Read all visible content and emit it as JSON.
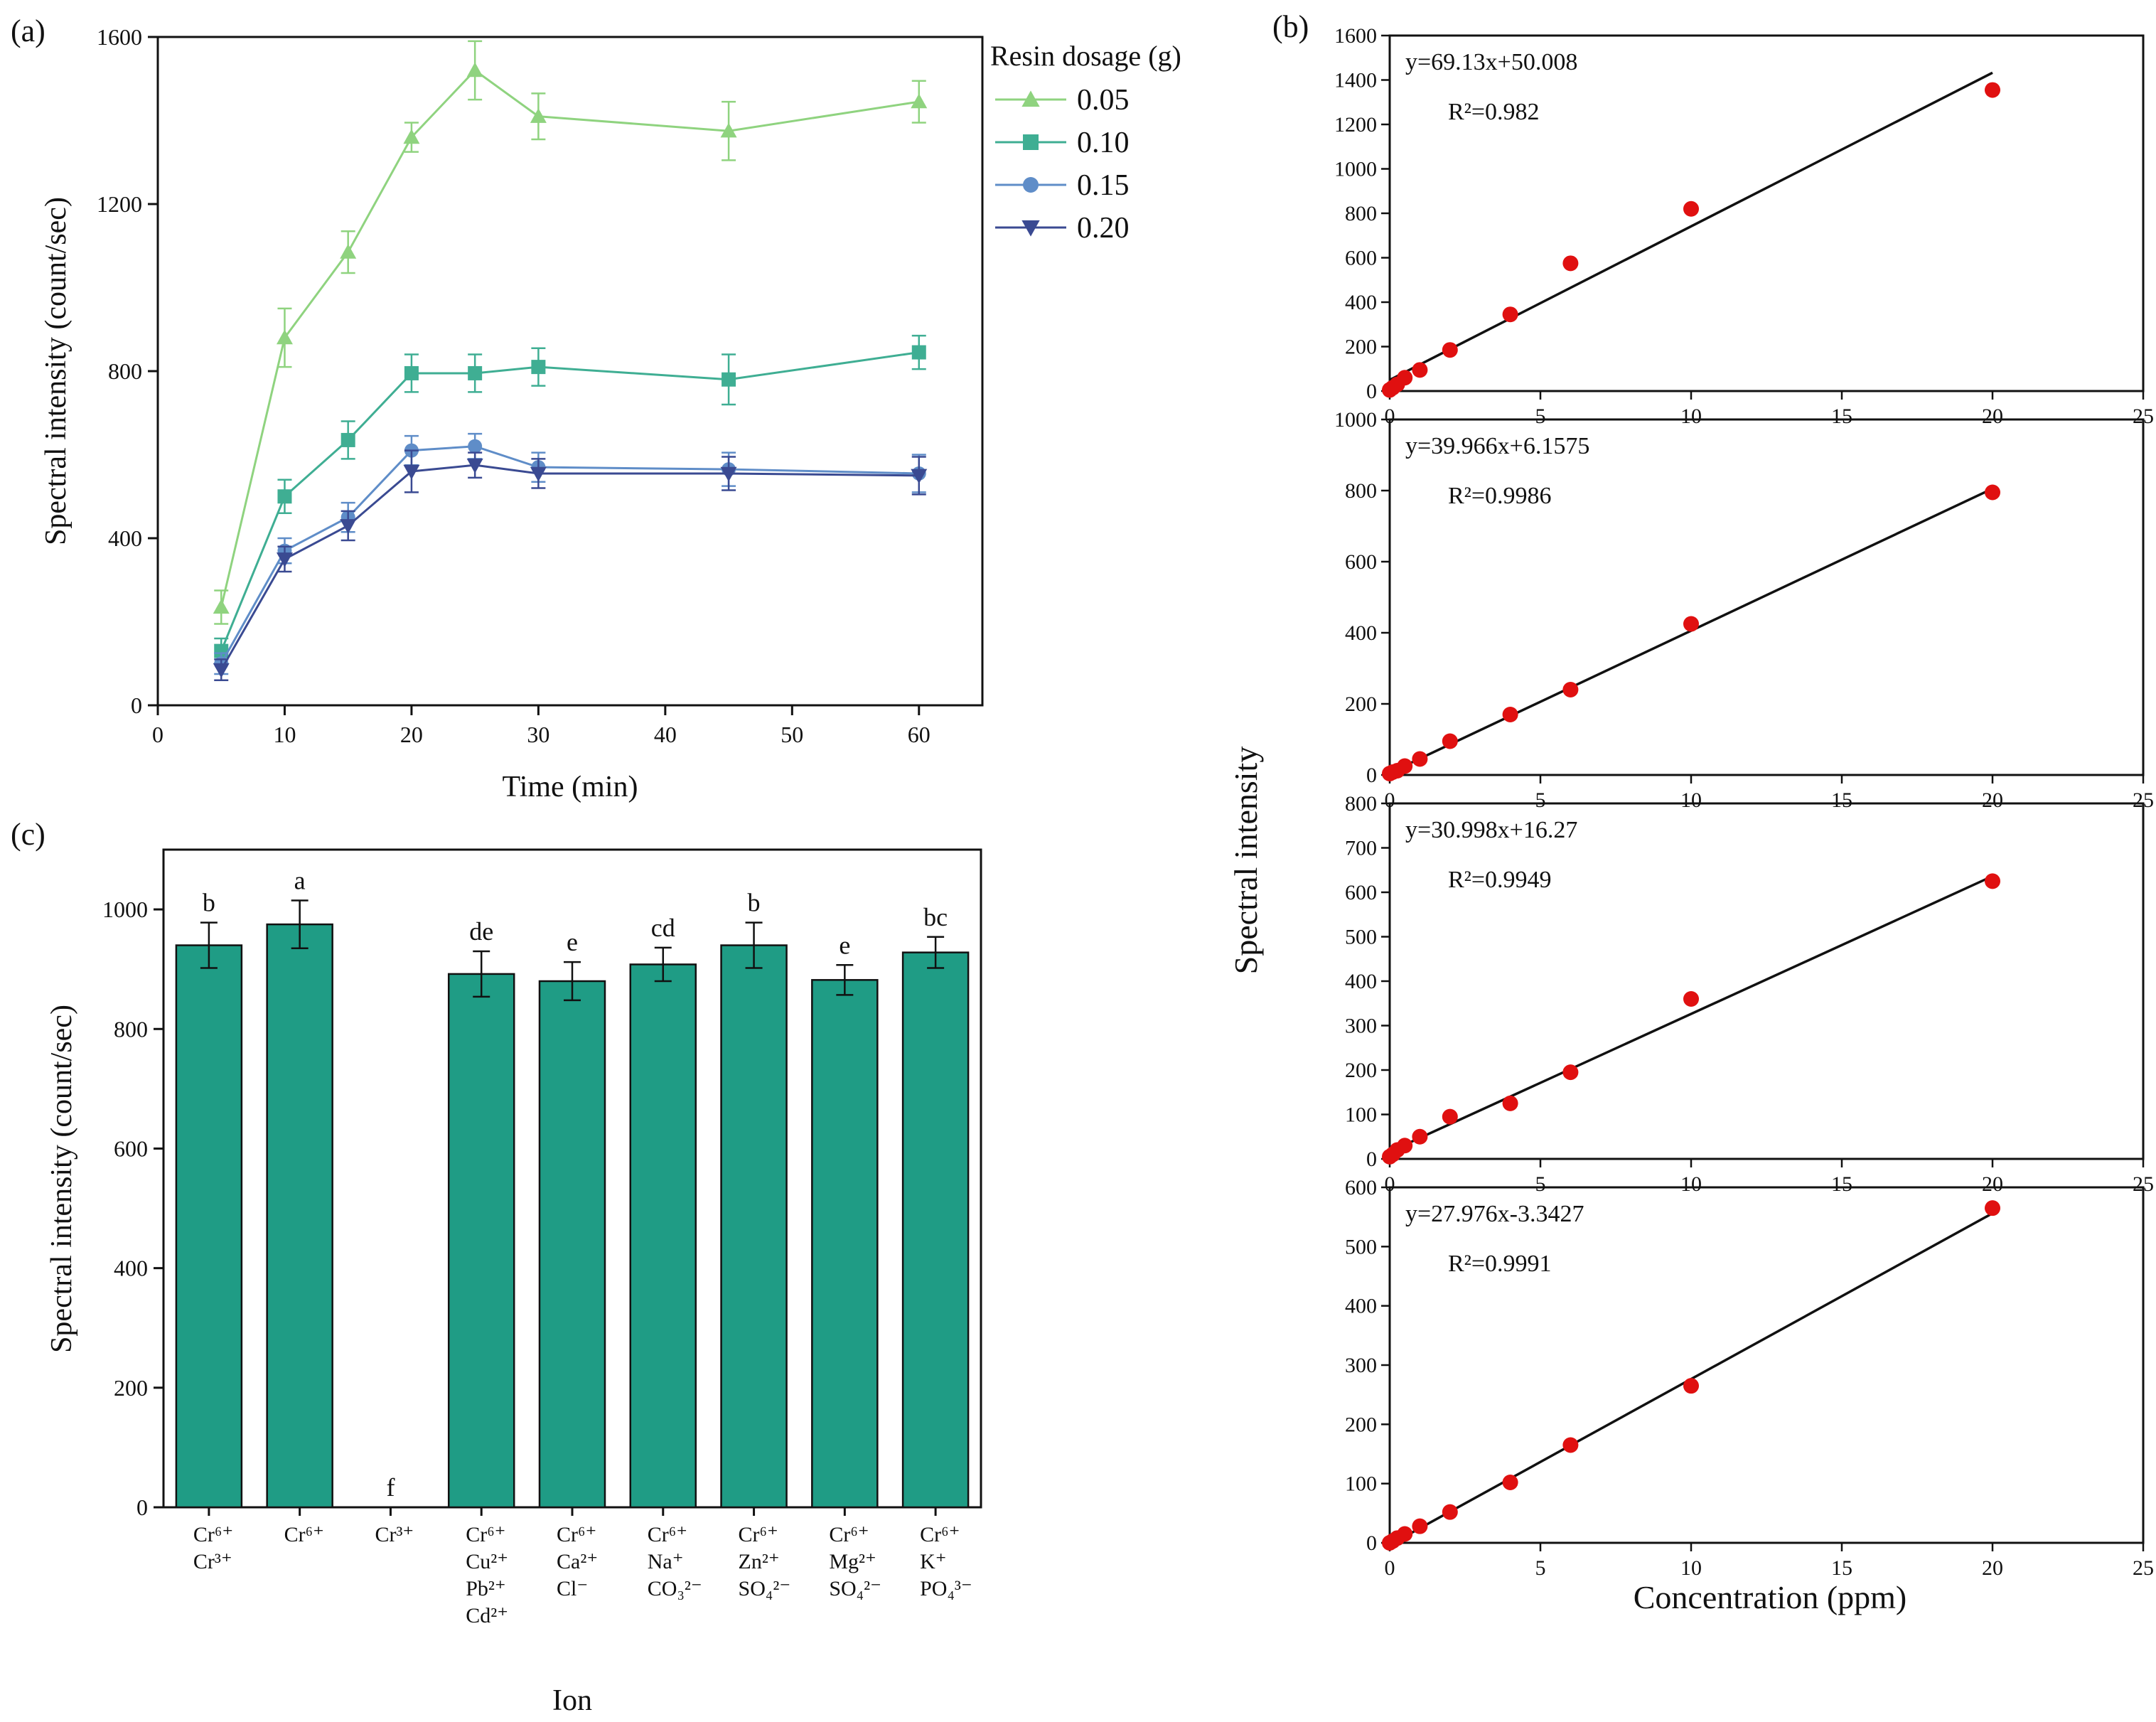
{
  "chart_data": [
    {
      "panel": "(a)",
      "type": "line",
      "xlabel": "Time (min)",
      "ylabel": "Spectral intensity (count/sec)",
      "xlim": [
        0,
        65
      ],
      "ylim": [
        0,
        1600
      ],
      "xticks": [
        0,
        10,
        20,
        30,
        40,
        50,
        60
      ],
      "yticks": [
        0,
        400,
        800,
        1200,
        1600
      ],
      "x": [
        5,
        10,
        15,
        20,
        25,
        30,
        45,
        60
      ],
      "legend": {
        "title": "Resin dosage (g)",
        "position": "top-right"
      },
      "series": [
        {
          "name": "0.05",
          "color": "#8fd37f",
          "marker": "triangle-up",
          "values": [
            235,
            880,
            1085,
            1360,
            1520,
            1410,
            1375,
            1445
          ],
          "errors": [
            40,
            70,
            50,
            35,
            70,
            55,
            70,
            50
          ]
        },
        {
          "name": "0.10",
          "color": "#3fae93",
          "marker": "square",
          "values": [
            130,
            500,
            635,
            795,
            795,
            810,
            780,
            845
          ],
          "errors": [
            30,
            40,
            45,
            45,
            45,
            45,
            60,
            40
          ]
        },
        {
          "name": "0.15",
          "color": "#5f8dc8",
          "marker": "circle",
          "values": [
            100,
            370,
            450,
            610,
            620,
            570,
            565,
            555
          ],
          "errors": [
            25,
            30,
            35,
            35,
            30,
            35,
            40,
            45
          ]
        },
        {
          "name": "0.20",
          "color": "#3a4a92",
          "marker": "triangle-down",
          "values": [
            85,
            350,
            430,
            560,
            575,
            555,
            555,
            550
          ],
          "errors": [
            25,
            30,
            35,
            50,
            30,
            35,
            40,
            45
          ]
        }
      ]
    },
    {
      "panel": "(b)",
      "type": "scatter",
      "xlabel": "Concentration (ppm)",
      "ylabel": "Spectral intensity",
      "xlim": [
        0,
        25
      ],
      "xticks": [
        0,
        5,
        10,
        15,
        20,
        25
      ],
      "point_color": "#e01010",
      "line_color": "#111111",
      "subplots": [
        {
          "equation": "y=69.13x+50.008",
          "r2": "R²=0.982",
          "ylim": [
            0,
            1600
          ],
          "yticks": [
            0,
            200,
            400,
            600,
            800,
            1000,
            1200,
            1400,
            1600
          ],
          "slope": 69.13,
          "intercept": 50.008,
          "x": [
            0,
            0.1,
            0.25,
            0.5,
            1,
            2,
            4,
            6,
            10,
            20
          ],
          "y": [
            5,
            15,
            30,
            60,
            95,
            185,
            345,
            575,
            820,
            1355
          ]
        },
        {
          "equation": "y=39.966x+6.1575",
          "r2": "R²=0.9986",
          "ylim": [
            0,
            1000
          ],
          "yticks": [
            0,
            200,
            400,
            600,
            800,
            1000
          ],
          "slope": 39.966,
          "intercept": 6.1575,
          "x": [
            0,
            0.1,
            0.25,
            0.5,
            1,
            2,
            4,
            6,
            10,
            20
          ],
          "y": [
            4,
            8,
            12,
            25,
            45,
            95,
            170,
            240,
            425,
            795
          ]
        },
        {
          "equation": "y=30.998x+16.27",
          "r2": "R²=0.9949",
          "ylim": [
            0,
            800
          ],
          "yticks": [
            0,
            100,
            200,
            300,
            400,
            500,
            600,
            700,
            800
          ],
          "slope": 30.998,
          "intercept": 16.27,
          "x": [
            0,
            0.1,
            0.25,
            0.5,
            1,
            2,
            4,
            6,
            10,
            20
          ],
          "y": [
            5,
            10,
            20,
            30,
            50,
            95,
            125,
            195,
            360,
            625
          ]
        },
        {
          "equation": "y=27.976x-3.3427",
          "r2": "R²=0.9991",
          "ylim": [
            0,
            600
          ],
          "yticks": [
            0,
            100,
            200,
            300,
            400,
            500,
            600
          ],
          "slope": 27.976,
          "intercept": -3.3427,
          "x": [
            0,
            0.1,
            0.25,
            0.5,
            1,
            2,
            4,
            6,
            10,
            20
          ],
          "y": [
            0,
            3,
            8,
            15,
            28,
            52,
            102,
            165,
            265,
            565
          ]
        }
      ]
    },
    {
      "panel": "(c)",
      "type": "bar",
      "xlabel": "Ion",
      "ylabel": "Spectral intensity (count/sec)",
      "ylim": [
        0,
        1100
      ],
      "yticks": [
        0,
        200,
        400,
        600,
        800,
        1000
      ],
      "bar_color": "#1f9c85",
      "categories": [
        [
          "Cr⁶⁺",
          "Cr³⁺"
        ],
        [
          "Cr⁶⁺"
        ],
        [
          "Cr³⁺"
        ],
        [
          "Cr⁶⁺",
          "Cu²⁺",
          "Pb²⁺",
          "Cd²⁺"
        ],
        [
          "Cr⁶⁺",
          "Ca²⁺",
          "Cl⁻"
        ],
        [
          "Cr⁶⁺",
          "Na⁺",
          "CO₃²⁻"
        ],
        [
          "Cr⁶⁺",
          "Zn²⁺",
          "SO₄²⁻"
        ],
        [
          "Cr⁶⁺",
          "Mg²⁺",
          "SO₄²⁻"
        ],
        [
          "Cr⁶⁺",
          "K⁺",
          "PO₄³⁻"
        ]
      ],
      "values": [
        940,
        975,
        0,
        892,
        880,
        908,
        940,
        882,
        928
      ],
      "errors": [
        38,
        40,
        0,
        38,
        32,
        28,
        38,
        25,
        26
      ],
      "group_labels": [
        "b",
        "a",
        "f",
        "de",
        "e",
        "cd",
        "b",
        "e",
        "bc"
      ]
    }
  ]
}
